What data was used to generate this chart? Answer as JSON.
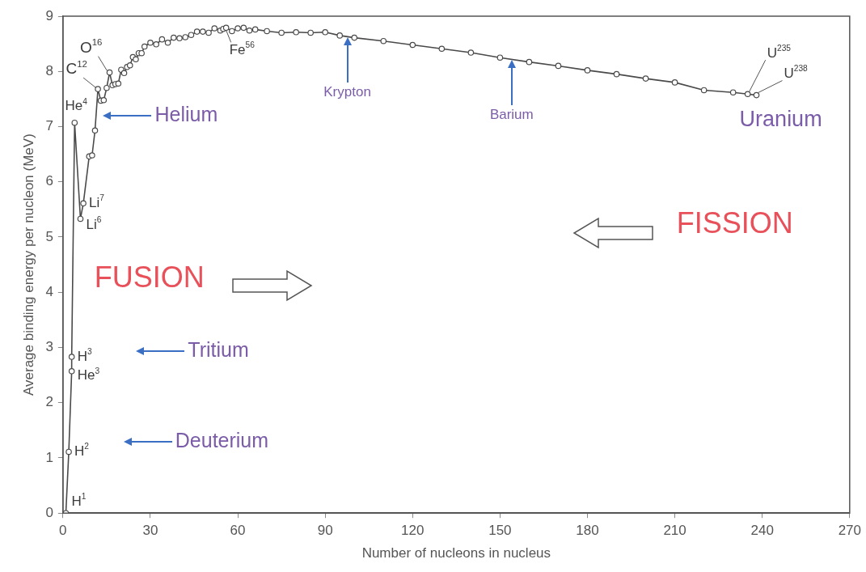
{
  "chart_data": {
    "type": "line",
    "xlabel": "Number of nucleons in nucleus",
    "ylabel": "Average binding energy per nucleon (MeV)",
    "x": [
      1,
      2,
      3,
      3,
      4,
      6,
      7,
      9,
      10,
      11,
      12,
      13,
      14,
      15,
      16,
      17,
      18,
      19,
      20,
      21,
      22,
      23,
      24,
      25,
      26,
      27,
      28,
      30,
      32,
      34,
      36,
      38,
      40,
      42,
      44,
      46,
      48,
      50,
      52,
      54,
      55,
      56,
      58,
      60,
      62,
      64,
      66,
      70,
      75,
      80,
      85,
      90,
      95,
      100,
      110,
      120,
      130,
      140,
      150,
      160,
      170,
      180,
      190,
      200,
      210,
      220,
      230,
      235,
      238
    ],
    "series": [
      {
        "color": "#4a4a4a",
        "values": [
          0,
          1.11,
          2.57,
          2.83,
          7.07,
          5.33,
          5.61,
          6.46,
          6.48,
          6.93,
          7.68,
          7.47,
          7.48,
          7.7,
          7.98,
          7.75,
          7.77,
          7.78,
          8.03,
          7.97,
          8.08,
          8.11,
          8.26,
          8.22,
          8.33,
          8.33,
          8.45,
          8.52,
          8.49,
          8.58,
          8.52,
          8.61,
          8.6,
          8.62,
          8.66,
          8.72,
          8.72,
          8.7,
          8.78,
          8.74,
          8.77,
          8.79,
          8.73,
          8.78,
          8.79,
          8.74,
          8.76,
          8.73,
          8.7,
          8.71,
          8.7,
          8.71,
          8.65,
          8.61,
          8.55,
          8.48,
          8.41,
          8.34,
          8.25,
          8.17,
          8.1,
          8.02,
          7.95,
          7.87,
          7.8,
          7.66,
          7.62,
          7.59,
          7.57
        ]
      }
    ],
    "xlim": [
      0,
      270
    ],
    "xticks": [
      0,
      30,
      60,
      90,
      120,
      150,
      180,
      210,
      240,
      270
    ],
    "ylim": [
      0,
      9
    ],
    "yticks": [
      0,
      1,
      2,
      3,
      4,
      5,
      6,
      7,
      8,
      9
    ],
    "grid": false,
    "legend": false,
    "marker": "circle",
    "line_style": "solid",
    "annotations": [
      {
        "text": "H$^{1}$",
        "x": 1,
        "y": 0
      },
      {
        "text": "H$^{2}$",
        "x": 2,
        "y": 1.11
      },
      {
        "text": "He$^{3}$",
        "x": 3,
        "y": 2.57
      },
      {
        "text": "H$^{3}$",
        "x": 3,
        "y": 2.83
      },
      {
        "text": "He$^{4}$",
        "x": 4,
        "y": 7.07
      },
      {
        "text": "Li$^{6}$",
        "x": 6,
        "y": 5.33
      },
      {
        "text": "Li$^{7}$",
        "x": 7,
        "y": 5.61
      },
      {
        "text": "C$^{12}$",
        "x": 12,
        "y": 7.68
      },
      {
        "text": "O$^{16}$",
        "x": 16,
        "y": 7.98
      },
      {
        "text": "Fe$^{56}$",
        "x": 56,
        "y": 8.79
      },
      {
        "text": "U$^{235}$",
        "x": 235,
        "y": 7.59
      },
      {
        "text": "U$^{238}$",
        "x": 238,
        "y": 7.57
      },
      "Helium",
      "Tritium",
      "Deuterium",
      {
        "text": "Krypton",
        "x": 97.6,
        "y": 8.62
      },
      {
        "text": "Barium",
        "x": 154,
        "y": 8.21
      },
      "Uranium",
      "FUSION",
      "FISSION"
    ]
  }
}
